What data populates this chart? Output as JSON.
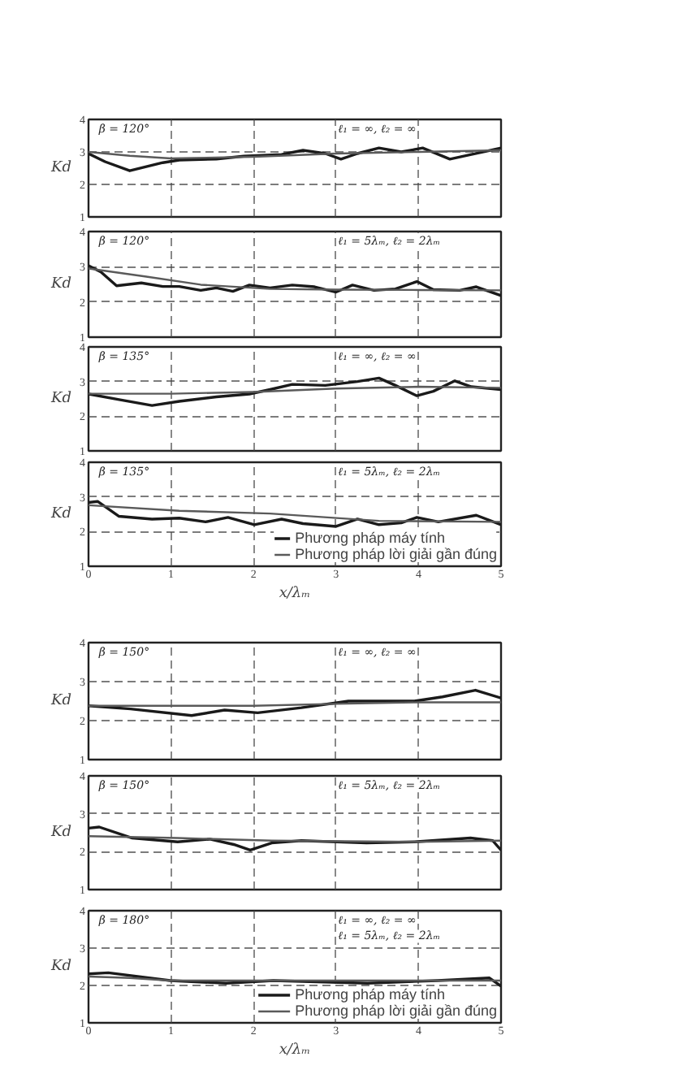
{
  "chart_data": [
    {
      "type": "line",
      "annotations": [
        "β = 120°",
        "ℓ₁ = ∞, ℓ₂ = ∞"
      ],
      "ylabel": "Kd",
      "xlim": [
        0,
        5
      ],
      "ylim": [
        1,
        4
      ],
      "xticks": [
        0,
        1,
        2,
        3,
        4,
        5
      ],
      "yticks": [
        1,
        2,
        3,
        4
      ],
      "grid": true,
      "tick_labels": "y",
      "series": [
        {
          "color": "#1a1a1a",
          "x": [
            0,
            0.2,
            0.5,
            0.9,
            1.1,
            1.55,
            1.88,
            2.34,
            2.6,
            2.87,
            3.06,
            3.26,
            3.52,
            3.79,
            4.05,
            4.38,
            4.64,
            5
          ],
          "values": [
            2.95,
            2.7,
            2.42,
            2.67,
            2.75,
            2.78,
            2.87,
            2.92,
            3.05,
            2.95,
            2.78,
            2.95,
            3.12,
            3.0,
            3.12,
            2.78,
            2.92,
            3.12
          ]
        },
        {
          "color": "#5a5a5a",
          "x": [
            0,
            0.5,
            1,
            2,
            3,
            4,
            5
          ],
          "values": [
            3.0,
            2.88,
            2.8,
            2.85,
            2.95,
            3.0,
            3.05
          ]
        }
      ]
    },
    {
      "type": "line",
      "annotations": [
        "β = 120°",
        "ℓ₁ = 5λₘ, ℓ₂ = 2λₘ"
      ],
      "ylabel": "Kd",
      "xlim": [
        0,
        5
      ],
      "ylim": [
        1,
        4
      ],
      "xticks": [
        0,
        1,
        2,
        3,
        4,
        5
      ],
      "yticks": [
        1,
        2,
        3,
        4
      ],
      "grid": true,
      "tick_labels": "y",
      "series": [
        {
          "color": "#1a1a1a",
          "x": [
            0,
            0.15,
            0.34,
            0.64,
            0.9,
            1.1,
            1.36,
            1.55,
            1.75,
            1.95,
            2.2,
            2.47,
            2.74,
            3.0,
            3.2,
            3.46,
            3.72,
            3.98,
            4.18,
            4.5,
            4.7,
            5
          ],
          "values": [
            3.03,
            2.85,
            2.46,
            2.54,
            2.44,
            2.44,
            2.33,
            2.4,
            2.3,
            2.48,
            2.4,
            2.48,
            2.43,
            2.28,
            2.48,
            2.33,
            2.37,
            2.58,
            2.35,
            2.33,
            2.43,
            2.18
          ]
        },
        {
          "color": "#5a5a5a",
          "x": [
            0,
            0.7,
            1.36,
            2.2,
            3,
            4,
            5
          ],
          "values": [
            2.95,
            2.72,
            2.49,
            2.37,
            2.35,
            2.34,
            2.33
          ]
        }
      ]
    },
    {
      "type": "line",
      "annotations": [
        "β = 135°",
        "ℓ₁ = ∞, ℓ₂ = ∞"
      ],
      "ylabel": "Kd",
      "xlim": [
        0,
        5
      ],
      "ylim": [
        1,
        4
      ],
      "xticks": [
        0,
        1,
        2,
        3,
        4,
        5
      ],
      "yticks": [
        1,
        2,
        3,
        4
      ],
      "grid": true,
      "tick_labels": "y",
      "series": [
        {
          "color": "#1a1a1a",
          "x": [
            0,
            0.37,
            0.77,
            1.1,
            1.55,
            1.95,
            2.2,
            2.47,
            2.87,
            3.26,
            3.52,
            3.72,
            3.98,
            4.18,
            4.44,
            4.64,
            5
          ],
          "values": [
            2.64,
            2.48,
            2.31,
            2.43,
            2.56,
            2.64,
            2.77,
            2.92,
            2.89,
            3.0,
            3.1,
            2.89,
            2.59,
            2.72,
            3.02,
            2.85,
            2.77
          ]
        },
        {
          "color": "#5a5a5a",
          "x": [
            0,
            1,
            2,
            3,
            4,
            5
          ],
          "values": [
            2.65,
            2.65,
            2.7,
            2.8,
            2.85,
            2.82
          ]
        }
      ]
    },
    {
      "type": "line",
      "annotations": [
        "β = 135°",
        "ℓ₁ = 5λₘ, ℓ₂ = 2λₘ"
      ],
      "xlabel": "x/λₘ",
      "ylabel": "Kd",
      "xlim": [
        0,
        5
      ],
      "ylim": [
        1,
        4
      ],
      "xticks": [
        0,
        1,
        2,
        3,
        4,
        5
      ],
      "yticks": [
        1,
        2,
        3,
        4
      ],
      "grid": true,
      "legend": "bottom right",
      "series": [
        {
          "name": "Phương pháp máy tính",
          "color": "#1a1a1a",
          "x": [
            0,
            0.11,
            0.37,
            0.77,
            1.1,
            1.42,
            1.69,
            2.01,
            2.34,
            2.6,
            3.0,
            3.26,
            3.52,
            3.79,
            3.98,
            4.24,
            4.7,
            5
          ],
          "values": [
            2.84,
            2.87,
            2.44,
            2.36,
            2.39,
            2.28,
            2.41,
            2.2,
            2.36,
            2.23,
            2.15,
            2.36,
            2.2,
            2.25,
            2.41,
            2.28,
            2.47,
            2.2
          ]
        },
        {
          "name": "Phương pháp lời giải gần đúng",
          "color": "#5a5a5a",
          "x": [
            0,
            1.1,
            2.2,
            3.52,
            5
          ],
          "values": [
            2.76,
            2.6,
            2.52,
            2.31,
            2.28
          ]
        }
      ]
    },
    {
      "type": "line",
      "annotations": [
        "β = 150°",
        "ℓ₁ = ∞, ℓ₂ = ∞"
      ],
      "ylabel": "Kd",
      "xlim": [
        0,
        5
      ],
      "ylim": [
        1,
        4
      ],
      "xticks": [
        0,
        1,
        2,
        3,
        4,
        5
      ],
      "yticks": [
        1,
        2,
        3,
        4
      ],
      "grid": true,
      "tick_labels": "y",
      "series": [
        {
          "color": "#1a1a1a",
          "x": [
            0,
            0.51,
            1.25,
            1.65,
            2.05,
            2.58,
            3.15,
            3.5,
            3.95,
            4.29,
            4.69,
            5
          ],
          "values": [
            2.38,
            2.3,
            2.13,
            2.27,
            2.2,
            2.33,
            2.5,
            2.5,
            2.5,
            2.61,
            2.78,
            2.58
          ]
        },
        {
          "color": "#5a5a5a",
          "x": [
            0,
            1,
            2,
            3,
            4,
            5
          ],
          "values": [
            2.38,
            2.38,
            2.38,
            2.43,
            2.47,
            2.47
          ]
        }
      ]
    },
    {
      "type": "line",
      "annotations": [
        "β = 150°",
        "ℓ₁ = 5λₘ, ℓ₂ = 2λₘ"
      ],
      "ylabel": "Kd",
      "xlim": [
        0,
        5
      ],
      "ylim": [
        1,
        4
      ],
      "xticks": [
        0,
        1,
        2,
        3,
        4,
        5
      ],
      "yticks": [
        1,
        2,
        3,
        4
      ],
      "grid": true,
      "tick_labels": "y",
      "series": [
        {
          "color": "#1a1a1a",
          "x": [
            0,
            0.13,
            0.53,
            1.08,
            1.47,
            1.76,
            1.96,
            2.22,
            2.58,
            3.37,
            3.95,
            4.63,
            4.9,
            5
          ],
          "values": [
            2.62,
            2.65,
            2.36,
            2.26,
            2.33,
            2.19,
            2.04,
            2.23,
            2.29,
            2.23,
            2.26,
            2.36,
            2.29,
            2.04
          ]
        },
        {
          "color": "#5a5a5a",
          "x": [
            0,
            1.08,
            2.22,
            3.95,
            5
          ],
          "values": [
            2.41,
            2.36,
            2.29,
            2.26,
            2.29
          ]
        }
      ]
    },
    {
      "type": "line",
      "annotations": [
        "β = 180°",
        "ℓ₁ = ∞, ℓ₂ = ∞",
        "ℓ₁ = 5λₘ, ℓ₂ = 2λₘ"
      ],
      "xlabel": "x/λₘ",
      "ylabel": "Kd",
      "xlim": [
        0,
        5
      ],
      "ylim": [
        1,
        4
      ],
      "xticks": [
        0,
        1,
        2,
        3,
        4,
        5
      ],
      "yticks": [
        1,
        2,
        3,
        4
      ],
      "grid": true,
      "legend": "bottom right",
      "series": [
        {
          "name": "Phương pháp máy tính",
          "color": "#1a1a1a",
          "x": [
            0,
            0.24,
            0.99,
            1.67,
            2.24,
            3.38,
            4.23,
            4.86,
            5
          ],
          "values": [
            2.31,
            2.34,
            2.13,
            2.06,
            2.13,
            2.06,
            2.13,
            2.2,
            1.98
          ]
        },
        {
          "name": "Phương pháp lời giải gần đúng",
          "color": "#5a5a5a",
          "x": [
            0,
            0.5,
            0.99,
            2,
            3,
            4,
            5
          ],
          "values": [
            2.24,
            2.2,
            2.13,
            2.13,
            2.13,
            2.13,
            2.13
          ]
        }
      ]
    }
  ]
}
